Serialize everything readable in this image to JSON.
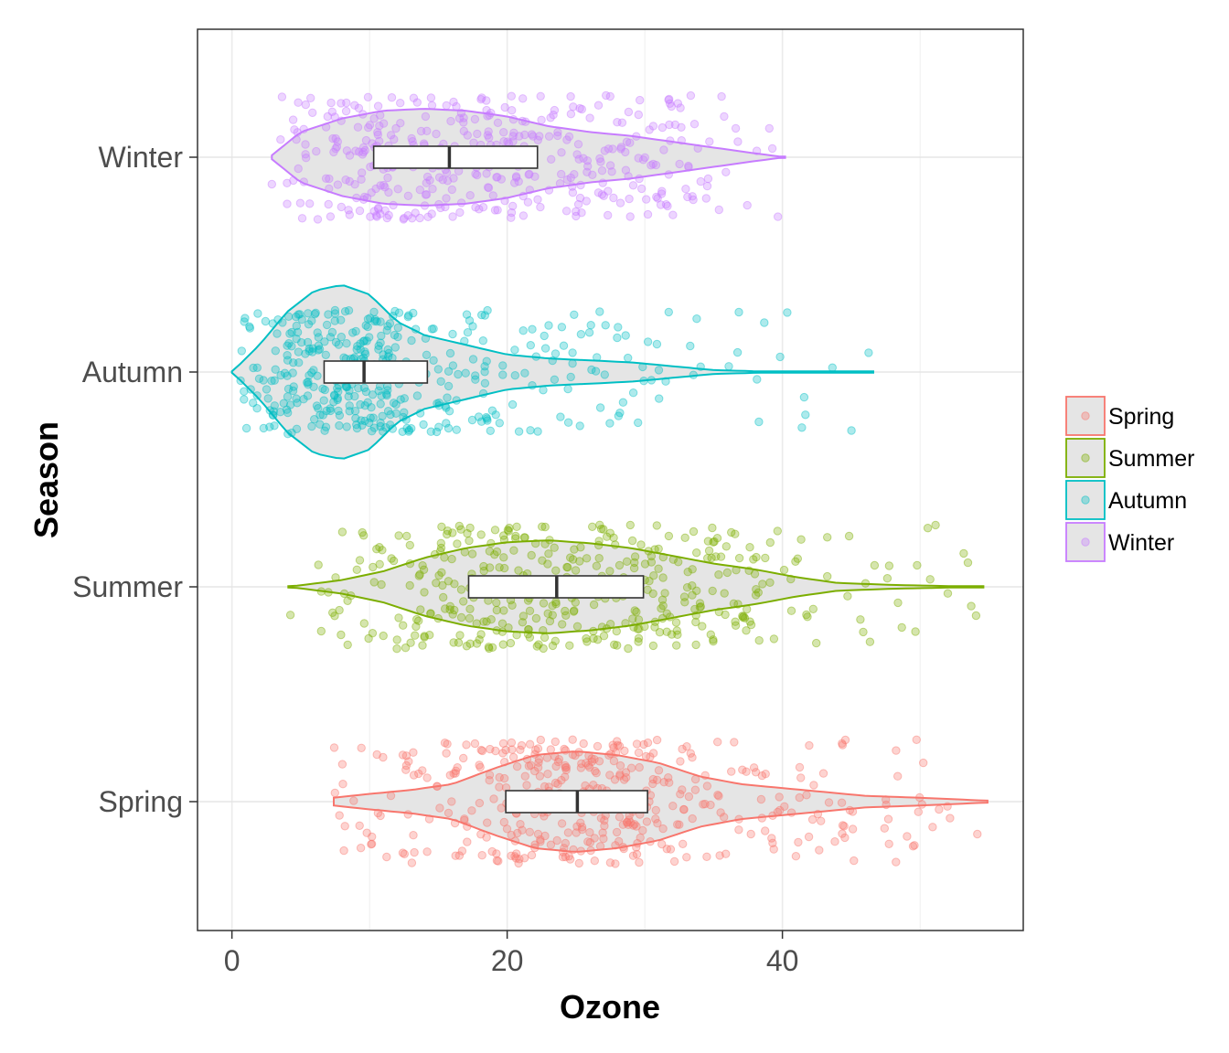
{
  "chart_data": {
    "type": "violin",
    "xlabel": "Ozone",
    "ylabel": "Season",
    "xlim": [
      -2.5,
      57.5
    ],
    "x_ticks": [
      0,
      20,
      40
    ],
    "x_tick_labels": [
      "0",
      "20",
      "40"
    ],
    "grid": true,
    "legend_position": "right",
    "categories": [
      "Spring",
      "Summer",
      "Autumn",
      "Winter"
    ],
    "series": [
      {
        "name": "Spring",
        "color": "#F8766D",
        "min": 7.4,
        "max": 54.9,
        "q1": 19.9,
        "median": 25.1,
        "q3": 30.2,
        "density_profile": [
          [
            7.4,
            0.04
          ],
          [
            10,
            0.08
          ],
          [
            13,
            0.12
          ],
          [
            16,
            0.18
          ],
          [
            19,
            0.34
          ],
          [
            22,
            0.48
          ],
          [
            25,
            0.52
          ],
          [
            28,
            0.48
          ],
          [
            31,
            0.4
          ],
          [
            34,
            0.26
          ],
          [
            37,
            0.18
          ],
          [
            40,
            0.14
          ],
          [
            43,
            0.1
          ],
          [
            46,
            0.06
          ],
          [
            50,
            0.04
          ],
          [
            54.9,
            0.01
          ]
        ],
        "points_approx": 420
      },
      {
        "name": "Summer",
        "color": "#7CAE00",
        "min": 4.1,
        "max": 54.6,
        "q1": 17.2,
        "median": 23.6,
        "q3": 29.9,
        "density_profile": [
          [
            4.1,
            0.0
          ],
          [
            8,
            0.07
          ],
          [
            11,
            0.16
          ],
          [
            14,
            0.3
          ],
          [
            17,
            0.4
          ],
          [
            20,
            0.46
          ],
          [
            23,
            0.48
          ],
          [
            26,
            0.45
          ],
          [
            29,
            0.4
          ],
          [
            32,
            0.32
          ],
          [
            35,
            0.24
          ],
          [
            38,
            0.18
          ],
          [
            41,
            0.1
          ],
          [
            44,
            0.04
          ],
          [
            48,
            0.02
          ],
          [
            54.6,
            0.0
          ]
        ],
        "points_approx": 420
      },
      {
        "name": "Autumn",
        "color": "#00BFC4",
        "min": 0.0,
        "max": 46.6,
        "q1": 6.7,
        "median": 9.6,
        "q3": 14.2,
        "density_profile": [
          [
            0,
            0.0
          ],
          [
            2,
            0.28
          ],
          [
            4,
            0.62
          ],
          [
            6,
            0.84
          ],
          [
            8,
            0.9
          ],
          [
            10,
            0.8
          ],
          [
            12,
            0.52
          ],
          [
            14,
            0.38
          ],
          [
            17,
            0.28
          ],
          [
            20,
            0.18
          ],
          [
            23,
            0.14
          ],
          [
            26,
            0.12
          ],
          [
            29,
            0.1
          ],
          [
            32,
            0.06
          ],
          [
            35,
            0.02
          ],
          [
            40,
            0.0
          ],
          [
            46.6,
            0.0
          ]
        ],
        "points_approx": 420
      },
      {
        "name": "Winter",
        "color": "#C77CFF",
        "min": 2.9,
        "max": 40.2,
        "q1": 10.3,
        "median": 15.8,
        "q3": 22.2,
        "density_profile": [
          [
            2.9,
            0.02
          ],
          [
            5,
            0.26
          ],
          [
            8,
            0.4
          ],
          [
            11,
            0.48
          ],
          [
            14,
            0.5
          ],
          [
            17,
            0.48
          ],
          [
            20,
            0.42
          ],
          [
            23,
            0.32
          ],
          [
            26,
            0.26
          ],
          [
            29,
            0.22
          ],
          [
            32,
            0.16
          ],
          [
            35,
            0.1
          ],
          [
            38,
            0.04
          ],
          [
            40.2,
            0.0
          ]
        ],
        "points_approx": 420
      }
    ]
  }
}
